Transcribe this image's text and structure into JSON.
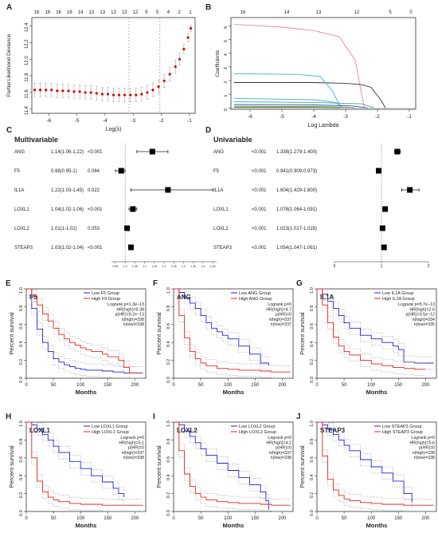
{
  "panels": {
    "A": {
      "letter": "A",
      "top_labels": [
        "16",
        "16",
        "16",
        "16",
        "14",
        "13",
        "13",
        "13",
        "13",
        "12",
        "9",
        "5",
        "4",
        "2",
        "1"
      ],
      "ylabel": "Partial Likelihood Deviance",
      "xlabel": "Log(λ)",
      "x_ticks": [
        "-6",
        "-5",
        "-4",
        "-3",
        "-2",
        "-1"
      ],
      "y_ticks": [
        "11.4",
        "11.6",
        "11.8",
        "12.0",
        "12.2",
        "12.4"
      ]
    },
    "B": {
      "letter": "B",
      "top_labels": [
        "16",
        "14",
        "13",
        "12",
        "5",
        "0"
      ],
      "ylabel": "Coefficients",
      "xlabel": "Log Lambda",
      "x_ticks": [
        "-6",
        "-5",
        "-4",
        "-3",
        "-2",
        "-1"
      ],
      "y_ticks": [
        "0",
        "1",
        "2",
        "3",
        "4",
        "5",
        "6"
      ]
    },
    "C": {
      "letter": "C",
      "title": "Multivariable",
      "rows": [
        {
          "gene": "ANG",
          "hr": "1.14(1.06-1.22)",
          "p": "<0.001"
        },
        {
          "gene": "F5",
          "hr": "0.98(0.95-1)",
          "p": "0.084"
        },
        {
          "gene": "IL1A",
          "hr": "1.22(1.03-1.45)",
          "p": "0.022"
        },
        {
          "gene": "LOXL1",
          "hr": "1.04(1.02-1.06)",
          "p": "<0.001"
        },
        {
          "gene": "LOXL2",
          "hr": "1.01(1-1.02)",
          "p": "0.053"
        },
        {
          "gene": "STEAP3",
          "hr": "1.03(1.02-1.04)",
          "p": "<0.001"
        }
      ],
      "x_ticks": [
        "0.95",
        "1.0",
        "1.05",
        "1.1",
        "1.15",
        "1.2",
        "1.25",
        "1.3",
        "1.35",
        "1.4",
        "1.45"
      ]
    },
    "D": {
      "letter": "D",
      "title": "Univariable",
      "rows": [
        {
          "gene": "ANG",
          "p": "<0.001",
          "hr": "1.338(1.279-1.400)"
        },
        {
          "gene": "F5",
          "p": "<0.001",
          "hr": "0.941(0.909-0.973)"
        },
        {
          "gene": "IL1A",
          "p": "<0.001",
          "hr": "1.604(1.429-1.800)"
        },
        {
          "gene": "LOXL1",
          "p": "<0.001",
          "hr": "1.078(1.064-1.091)"
        },
        {
          "gene": "LOXL2",
          "p": "<0.001",
          "hr": "1.023(1.017-1.028)"
        },
        {
          "gene": "STEAP3",
          "p": "<0.001",
          "hr": "1.054(1.047-1.061)"
        }
      ],
      "x_ticks": [
        "0",
        "1",
        "2"
      ]
    },
    "km_common": {
      "ylabel": "Percent survival",
      "xlabel": "Months",
      "x_ticks": [
        "0",
        "50",
        "100",
        "150",
        "200"
      ],
      "y_ticks": [
        "0.0",
        "0.2",
        "0.4",
        "0.6",
        "0.8",
        "1.0"
      ]
    },
    "km": [
      {
        "letter": "E",
        "gene": "F5",
        "low": "Low F5 Group",
        "high": "High F5 Group",
        "stats": [
          "Logrank p=1.3e−13",
          "HR(high)=0.38",
          "p(HR)=9.2e−13",
          "n(high)=338",
          "n(low)=338"
        ]
      },
      {
        "letter": "F",
        "gene": "ANG",
        "low": "Low ANG Group",
        "high": "High ANG Group",
        "stats": [
          "Logrank p=0",
          "HR(high)=4.7",
          "p(HR)=0",
          "n(high)=337",
          "n(low)=337"
        ]
      },
      {
        "letter": "G",
        "gene": "IL1A",
        "low": "Low IL1A Group",
        "high": "High IL1A Group",
        "stats": [
          "Logrank p=5.7e−13",
          "HR(high)=2.6",
          "p(HR)=3.5e−12",
          "n(high)=334",
          "n(low)=335"
        ]
      },
      {
        "letter": "H",
        "gene": "LOXL1",
        "low": "Low LOXL1 Group",
        "high": "High LOXL1 Group",
        "stats": [
          "Logrank p=0",
          "HR(high)=5.1",
          "p(HR)=0",
          "n(high)=337",
          "n(low)=338"
        ]
      },
      {
        "letter": "I",
        "gene": "LOXL2",
        "low": "Low LOXL2 Group",
        "high": "High LOXL2 Group",
        "stats": [
          "Logrank p=0",
          "HR(high)=4.2",
          "p(HR)=0",
          "n(high)=337",
          "n(low)=338"
        ]
      },
      {
        "letter": "J",
        "gene": "STEAP3",
        "low": "Low STEAP3 Group",
        "high": "High STEAP3 Group",
        "stats": [
          "Logrank p=0",
          "HR(high)=5.6",
          "p(HR)=0",
          "n(high)=338",
          "n(low)=338"
        ]
      }
    ]
  },
  "colors": {
    "low": "#2222dd",
    "high": "#ee2222",
    "ci": "#999999",
    "cv_point": "#dd0000"
  },
  "chart_data": [
    {
      "type": "scatter",
      "panel": "A",
      "xlim": [
        -6.6,
        -0.8
      ],
      "ylim": [
        11.35,
        12.5
      ],
      "points": [
        [
          -6.5,
          11.63
        ],
        [
          -6.3,
          11.63
        ],
        [
          -6.1,
          11.63
        ],
        [
          -5.9,
          11.63
        ],
        [
          -5.7,
          11.62
        ],
        [
          -5.5,
          11.62
        ],
        [
          -5.3,
          11.62
        ],
        [
          -5.1,
          11.61
        ],
        [
          -4.9,
          11.61
        ],
        [
          -4.7,
          11.6
        ],
        [
          -4.5,
          11.6
        ],
        [
          -4.3,
          11.59
        ],
        [
          -4.1,
          11.58
        ],
        [
          -3.9,
          11.58
        ],
        [
          -3.7,
          11.57
        ],
        [
          -3.5,
          11.57
        ],
        [
          -3.3,
          11.57
        ],
        [
          -3.1,
          11.57
        ],
        [
          -2.9,
          11.57
        ],
        [
          -2.7,
          11.58
        ],
        [
          -2.5,
          11.6
        ],
        [
          -2.3,
          11.63
        ],
        [
          -2.1,
          11.67
        ],
        [
          -1.9,
          11.74
        ],
        [
          -1.7,
          11.82
        ],
        [
          -1.5,
          11.91
        ],
        [
          -1.35,
          12.0
        ],
        [
          -1.2,
          12.12
        ],
        [
          -1.05,
          12.26
        ],
        [
          -0.95,
          12.37
        ]
      ],
      "errors": [
        0.08,
        0.08,
        0.08,
        0.08,
        0.08,
        0.08,
        0.08,
        0.08,
        0.08,
        0.08,
        0.08,
        0.08,
        0.08,
        0.08,
        0.08,
        0.08,
        0.08,
        0.08,
        0.08,
        0.08,
        0.08,
        0.08,
        0.08,
        0.08,
        0.08,
        0.08,
        0.07,
        0.06,
        0.05,
        0.04
      ],
      "vlines": [
        -3.15,
        -2.05
      ]
    },
    {
      "type": "line",
      "panel": "B",
      "xlim": [
        -6.6,
        -0.8
      ],
      "ylim": [
        -0.1,
        6.6
      ],
      "series": [
        {
          "color": "#e88a9a",
          "x": [
            -6.5,
            -5,
            -4,
            -3.2,
            -2.7,
            -2.5,
            -2.4
          ],
          "y": [
            6.1,
            5.9,
            5.65,
            5.2,
            3.5,
            1.0,
            0
          ]
        },
        {
          "color": "#333333",
          "x": [
            -6.5,
            -4,
            -3,
            -2.5,
            -2.2,
            -1.9,
            -1.75
          ],
          "y": [
            1.85,
            1.85,
            1.8,
            1.7,
            1.5,
            0.6,
            0
          ]
        },
        {
          "color": "#3bb0d8",
          "x": [
            -6.5,
            -4.5,
            -3.8,
            -3.4,
            -3.15
          ],
          "y": [
            2.5,
            2.45,
            2.3,
            1.2,
            0
          ]
        },
        {
          "color": "#3bb0d8",
          "x": [
            -6.5,
            -4,
            -3.3,
            -3.1
          ],
          "y": [
            0.7,
            0.6,
            0.4,
            0
          ]
        },
        {
          "color": "#44aa88",
          "x": [
            -6.5,
            -4,
            -2.5,
            -2.1
          ],
          "y": [
            0.45,
            0.4,
            0.3,
            0
          ]
        },
        {
          "color": "#2255cc",
          "x": [
            -6.5,
            -4,
            -2.8,
            -2.3
          ],
          "y": [
            0.25,
            0.22,
            0.15,
            0
          ]
        },
        {
          "color": "#996633",
          "x": [
            -6.5,
            -4,
            -3,
            -2.7
          ],
          "y": [
            0.12,
            0.1,
            0.06,
            0
          ]
        },
        {
          "color": "#22aa22",
          "x": [
            -6.5,
            -4,
            -3.2
          ],
          "y": [
            0.05,
            0.04,
            0
          ]
        }
      ]
    },
    {
      "type": "forest",
      "panel": "C",
      "genes": [
        "ANG",
        "F5",
        "IL1A",
        "LOXL1",
        "LOXL2",
        "STEAP3"
      ],
      "hr": [
        1.14,
        0.98,
        1.22,
        1.04,
        1.01,
        1.03
      ],
      "lower": [
        1.06,
        0.95,
        1.03,
        1.02,
        1.0,
        1.02
      ],
      "upper": [
        1.22,
        1.0,
        1.45,
        1.06,
        1.02,
        1.04
      ],
      "xlim": [
        0.93,
        1.47
      ]
    },
    {
      "type": "forest",
      "panel": "D",
      "genes": [
        "ANG",
        "F5",
        "IL1A",
        "LOXL1",
        "LOXL2",
        "STEAP3"
      ],
      "hr": [
        1.338,
        0.941,
        1.604,
        1.078,
        1.023,
        1.054
      ],
      "lower": [
        1.279,
        0.909,
        1.429,
        1.064,
        1.017,
        1.047
      ],
      "upper": [
        1.4,
        0.973,
        1.8,
        1.091,
        1.028,
        1.061
      ],
      "xlim": [
        0,
        2
      ]
    },
    {
      "type": "line",
      "panel": "E",
      "xlim": [
        0,
        220
      ],
      "ylim": [
        0,
        1
      ],
      "series": [
        {
          "group": "low",
          "x": [
            0,
            10,
            20,
            30,
            40,
            50,
            60,
            70,
            80,
            90,
            100,
            110,
            120,
            140,
            160,
            180,
            200,
            215
          ],
          "y": [
            1,
            0.78,
            0.55,
            0.4,
            0.3,
            0.22,
            0.18,
            0.15,
            0.13,
            0.11,
            0.1,
            0.09,
            0.09,
            0.08,
            0.07,
            0.06,
            0.06,
            0.06
          ]
        },
        {
          "group": "high",
          "x": [
            0,
            10,
            20,
            30,
            40,
            50,
            60,
            70,
            80,
            90,
            100,
            110,
            120,
            140,
            150,
            160,
            170,
            180,
            190,
            210
          ],
          "y": [
            1,
            0.92,
            0.82,
            0.72,
            0.64,
            0.56,
            0.49,
            0.44,
            0.4,
            0.37,
            0.34,
            0.32,
            0.3,
            0.27,
            0.24,
            0.24,
            0.2,
            0.12,
            0.06,
            0.06
          ]
        }
      ]
    },
    {
      "type": "line",
      "panel": "F",
      "xlim": [
        0,
        220
      ],
      "ylim": [
        0,
        1
      ],
      "series": [
        {
          "group": "low",
          "x": [
            0,
            10,
            20,
            30,
            40,
            50,
            60,
            70,
            80,
            90,
            100,
            120,
            140,
            160,
            175
          ],
          "y": [
            1,
            0.96,
            0.9,
            0.84,
            0.78,
            0.7,
            0.62,
            0.56,
            0.52,
            0.48,
            0.44,
            0.36,
            0.27,
            0.17,
            0.14
          ]
        },
        {
          "group": "high",
          "x": [
            0,
            10,
            20,
            30,
            40,
            50,
            60,
            80,
            100,
            120,
            140,
            160,
            180,
            200,
            215
          ],
          "y": [
            1,
            0.7,
            0.45,
            0.3,
            0.22,
            0.17,
            0.14,
            0.11,
            0.1,
            0.09,
            0.09,
            0.08,
            0.07,
            0.07,
            0.07
          ]
        }
      ]
    },
    {
      "type": "line",
      "panel": "G",
      "xlim": [
        0,
        220
      ],
      "ylim": [
        0,
        1
      ],
      "series": [
        {
          "group": "low",
          "x": [
            0,
            10,
            20,
            30,
            40,
            50,
            60,
            80,
            100,
            120,
            140,
            150,
            160,
            180,
            200,
            215
          ],
          "y": [
            1,
            0.94,
            0.86,
            0.78,
            0.7,
            0.62,
            0.56,
            0.48,
            0.44,
            0.4,
            0.36,
            0.32,
            0.18,
            0.17,
            0.17,
            0.17
          ]
        },
        {
          "group": "high",
          "x": [
            0,
            10,
            20,
            30,
            40,
            50,
            60,
            80,
            100,
            120,
            140,
            160,
            180,
            200
          ],
          "y": [
            1,
            0.82,
            0.62,
            0.46,
            0.36,
            0.3,
            0.26,
            0.2,
            0.16,
            0.14,
            0.12,
            0.11,
            0.1,
            0.1
          ]
        }
      ]
    },
    {
      "type": "line",
      "panel": "H",
      "xlim": [
        0,
        220
      ],
      "ylim": [
        0,
        1
      ],
      "series": [
        {
          "group": "low",
          "x": [
            0,
            10,
            20,
            30,
            40,
            50,
            60,
            80,
            100,
            120,
            140,
            160,
            170,
            180
          ],
          "y": [
            1,
            0.97,
            0.92,
            0.86,
            0.8,
            0.73,
            0.66,
            0.56,
            0.48,
            0.4,
            0.33,
            0.26,
            0.2,
            0.16
          ]
        },
        {
          "group": "high",
          "x": [
            0,
            10,
            20,
            30,
            40,
            50,
            60,
            80,
            100,
            120,
            140,
            160,
            180,
            200,
            215
          ],
          "y": [
            1,
            0.6,
            0.34,
            0.22,
            0.16,
            0.13,
            0.11,
            0.09,
            0.08,
            0.08,
            0.07,
            0.07,
            0.07,
            0.07,
            0.07
          ]
        }
      ]
    },
    {
      "type": "line",
      "panel": "I",
      "xlim": [
        0,
        220
      ],
      "ylim": [
        0,
        1
      ],
      "series": [
        {
          "group": "low",
          "x": [
            0,
            10,
            20,
            30,
            40,
            50,
            60,
            80,
            100,
            120,
            140,
            160,
            170,
            175
          ],
          "y": [
            1,
            0.97,
            0.9,
            0.84,
            0.77,
            0.7,
            0.63,
            0.54,
            0.46,
            0.38,
            0.3,
            0.22,
            0.12,
            0.02
          ]
        },
        {
          "group": "high",
          "x": [
            0,
            10,
            20,
            30,
            40,
            50,
            60,
            80,
            100,
            120,
            140,
            160,
            180,
            200,
            215
          ],
          "y": [
            1,
            0.68,
            0.42,
            0.28,
            0.2,
            0.16,
            0.13,
            0.11,
            0.1,
            0.09,
            0.09,
            0.08,
            0.07,
            0.07,
            0.07
          ]
        }
      ]
    },
    {
      "type": "line",
      "panel": "J",
      "xlim": [
        0,
        220
      ],
      "ylim": [
        0,
        1
      ],
      "series": [
        {
          "group": "low",
          "x": [
            0,
            10,
            20,
            30,
            40,
            50,
            60,
            80,
            100,
            120,
            140,
            160,
            175
          ],
          "y": [
            1,
            0.97,
            0.92,
            0.86,
            0.8,
            0.74,
            0.68,
            0.58,
            0.5,
            0.43,
            0.34,
            0.2,
            0.1
          ]
        },
        {
          "group": "high",
          "x": [
            0,
            10,
            20,
            30,
            40,
            50,
            60,
            80,
            100,
            120,
            140,
            160,
            180,
            200,
            215
          ],
          "y": [
            1,
            0.62,
            0.36,
            0.24,
            0.18,
            0.14,
            0.12,
            0.1,
            0.09,
            0.08,
            0.08,
            0.07,
            0.07,
            0.07,
            0.07
          ]
        }
      ]
    }
  ]
}
